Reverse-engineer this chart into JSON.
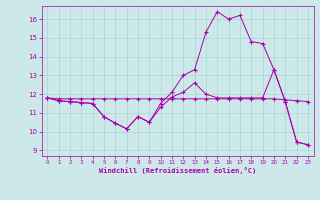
{
  "bg_color": "#cce8e8",
  "grid_color": "#aad4d4",
  "line_color": "#aa00aa",
  "xlabel": "Windchill (Refroidissement éolien,°C)",
  "xlim_min": -0.5,
  "xlim_max": 23.5,
  "ylim_min": 8.7,
  "ylim_max": 16.7,
  "yticks": [
    9,
    10,
    11,
    12,
    13,
    14,
    15,
    16
  ],
  "xticks": [
    0,
    1,
    2,
    3,
    4,
    5,
    6,
    7,
    8,
    9,
    10,
    11,
    12,
    13,
    14,
    15,
    16,
    17,
    18,
    19,
    20,
    21,
    22,
    23
  ],
  "s1_x": [
    0,
    1,
    2,
    3,
    4,
    5,
    6,
    7,
    8,
    9,
    10,
    11,
    12,
    13,
    14,
    15,
    16,
    17,
    18,
    19,
    20,
    21,
    22,
    23
  ],
  "s1_y": [
    11.8,
    11.75,
    11.75,
    11.75,
    11.75,
    11.75,
    11.75,
    11.75,
    11.75,
    11.75,
    11.75,
    11.75,
    11.75,
    11.75,
    11.75,
    11.75,
    11.75,
    11.75,
    11.75,
    11.75,
    11.75,
    11.7,
    11.65,
    11.6
  ],
  "s2_x": [
    0,
    1,
    2,
    3,
    4,
    5,
    6,
    7,
    8,
    9,
    10,
    11,
    12,
    13,
    14,
    15,
    16,
    17,
    18,
    19,
    20,
    21,
    22,
    23
  ],
  "s2_y": [
    11.8,
    11.65,
    11.6,
    11.55,
    11.5,
    10.8,
    10.45,
    10.15,
    10.8,
    10.5,
    11.3,
    11.85,
    12.1,
    12.6,
    12.0,
    11.8,
    11.8,
    11.8,
    11.8,
    11.8,
    13.3,
    11.6,
    9.45,
    9.3
  ],
  "s3_x": [
    0,
    1,
    2,
    3,
    4,
    5,
    6,
    7,
    8,
    9,
    10,
    11,
    12,
    13,
    14,
    15,
    16,
    17,
    18,
    19,
    20,
    21,
    22,
    23
  ],
  "s3_y": [
    11.8,
    11.65,
    11.6,
    11.55,
    11.5,
    10.8,
    10.45,
    10.15,
    10.8,
    10.5,
    11.5,
    12.1,
    13.0,
    13.3,
    15.3,
    16.4,
    16.0,
    16.2,
    14.8,
    14.7,
    13.3,
    11.6,
    9.45,
    9.3
  ]
}
